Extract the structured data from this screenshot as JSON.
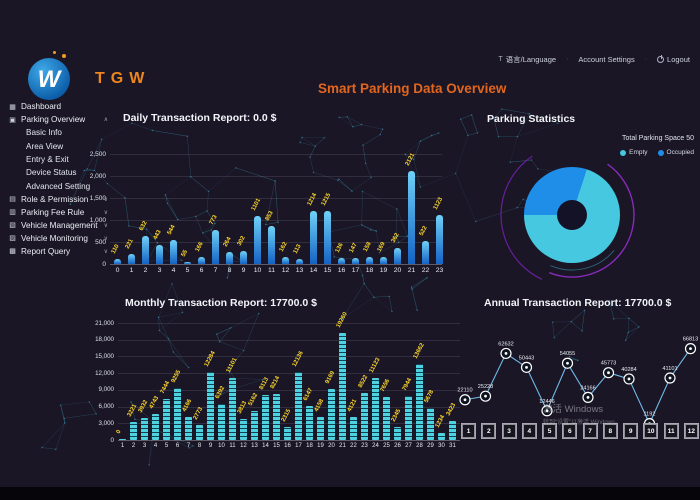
{
  "app": {
    "logo_text": "TGW",
    "page_title": "Smart Parking Data Overview"
  },
  "header": {
    "language_label": "语言/Language",
    "account_settings_label": "Account Settings",
    "logout_label": "Logout"
  },
  "sidebar": {
    "items": [
      {
        "label": "Dashboard",
        "icon": "dashboard-icon",
        "glyph": "▦",
        "caret": "",
        "children": []
      },
      {
        "label": "Parking Overview",
        "icon": "parking-overview-icon",
        "glyph": "▣",
        "caret": "∧",
        "children": [
          "Basic Info",
          "Area View",
          "Entry & Exit",
          "Device Status",
          "Advanced Setting"
        ]
      },
      {
        "label": "Role & Permission",
        "icon": "role-permission-icon",
        "glyph": "▤",
        "caret": "∨",
        "children": []
      },
      {
        "label": "Parking Fee Rule",
        "icon": "fee-rule-icon",
        "glyph": "▥",
        "caret": "∨",
        "children": []
      },
      {
        "label": "Vehicle Management",
        "icon": "vehicle-management-icon",
        "glyph": "▧",
        "caret": "∨",
        "children": []
      },
      {
        "label": "Vehicle Monitoring",
        "icon": "vehicle-monitoring-icon",
        "glyph": "▨",
        "caret": "∨",
        "children": []
      },
      {
        "label": "Report Query",
        "icon": "report-query-icon",
        "glyph": "▩",
        "caret": "∨",
        "children": []
      }
    ]
  },
  "watermark": {
    "line1": "激活 Windows",
    "line2": "转到“设置”以激活 Windows。"
  },
  "month_selector": {
    "months": [
      "1",
      "2",
      "3",
      "4",
      "5",
      "6",
      "7",
      "8",
      "9",
      "10",
      "11",
      "12"
    ]
  },
  "chart_data": [
    {
      "type": "bar",
      "title": "Daily Transaction Report: 0.0 $",
      "categories": [
        "0",
        "1",
        "2",
        "3",
        "4",
        "5",
        "6",
        "7",
        "8",
        "9",
        "10",
        "11",
        "12",
        "13",
        "14",
        "15",
        "16",
        "17",
        "18",
        "19",
        "20",
        "21",
        "22",
        "23"
      ],
      "values": [
        110,
        221,
        632,
        443,
        544,
        55,
        166,
        773,
        264,
        302,
        1101,
        853,
        162,
        113,
        1214,
        1215,
        136,
        147,
        158,
        169,
        362,
        2121,
        522,
        1123
      ],
      "xlabel": "hour",
      "ylabel": "",
      "ylim": [
        0,
        2500
      ],
      "yticks": [
        "0",
        "500",
        "1,000",
        "1,500",
        "2,000",
        "2,500"
      ],
      "grid": true,
      "bar_color_top": "#6fd1f7",
      "bar_color_bottom": "#1462c4",
      "value_label_color": "#ffd92b"
    },
    {
      "type": "pie",
      "title": "Parking Statistics",
      "legend_title": "Total Parking Space 50",
      "slices": [
        {
          "label": "Empty",
          "value": 35,
          "color": "#45c8e0"
        },
        {
          "label": "Occupied",
          "value": 15,
          "color": "#1f8ee9"
        }
      ],
      "donut": true,
      "legend_position": "top-right"
    },
    {
      "type": "bar",
      "title": "Monthly Transaction Report: 17700.0 $",
      "categories": [
        "1",
        "2",
        "3",
        "4",
        "5",
        "6",
        "7",
        "8",
        "9",
        "10",
        "11",
        "12",
        "13",
        "14",
        "15",
        "16",
        "17",
        "18",
        "19",
        "20",
        "21",
        "22",
        "23",
        "24",
        "25",
        "26",
        "27",
        "28",
        "29",
        "30",
        "31"
      ],
      "values": [
        0,
        3221,
        3932,
        4743,
        7444,
        9255,
        4166,
        2773,
        12284,
        6392,
        11101,
        3813,
        5162,
        8113,
        8214,
        2315,
        12136,
        6147,
        4158,
        9169,
        19260,
        4121,
        8522,
        11123,
        7656,
        2345,
        7944,
        13662,
        5678,
        1234,
        3423
      ],
      "xlabel": "day",
      "ylabel": "",
      "ylim": [
        0,
        21000
      ],
      "yticks": [
        "0",
        "3,000",
        "6,000",
        "9,000",
        "12,000",
        "15,000",
        "18,000",
        "21,000"
      ],
      "grid": true,
      "bar_color": "#4fd2df",
      "value_label_color": "#ffd92b"
    },
    {
      "type": "line",
      "title": "Annual Transaction Report: 17700.0 $",
      "x": [
        "1",
        "2",
        "3",
        "4",
        "5",
        "6",
        "7",
        "8",
        "9",
        "10",
        "11",
        "12"
      ],
      "values": [
        22110,
        25228,
        62632,
        50443,
        12446,
        54055,
        24166,
        45773,
        40284,
        1192,
        41101,
        66813
      ],
      "ylim": [
        0,
        70000
      ],
      "grid": false,
      "line_color": "#6fb9e8",
      "marker": "ring",
      "value_label_color": "#e8ecf2"
    }
  ],
  "colors": {
    "background": "#1a1626",
    "accent_orange": "#e2661e",
    "logo_orange": "#ef861c",
    "map_network": "#49c7e5",
    "bar_value_yellow": "#ffd92b",
    "empty_cyan": "#45c8e0",
    "occupied_blue": "#1f8ee9",
    "ring_purple": "#9b2fd4"
  }
}
